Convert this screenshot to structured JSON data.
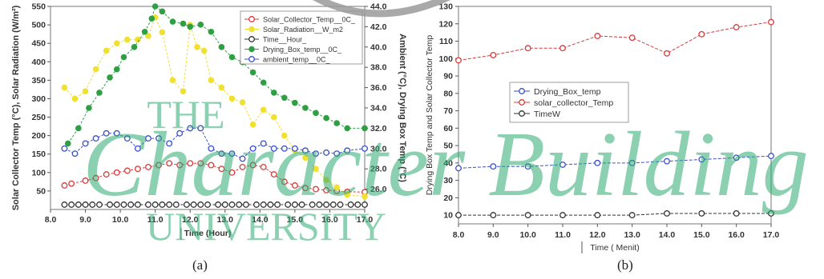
{
  "captions": [
    "(a)",
    "(b)"
  ],
  "watermark": {
    "top": "THE",
    "main": "Character Building",
    "bottom": "UNIVERSITY",
    "color": "#2eaa73"
  },
  "chart_data": [
    {
      "type": "scatter",
      "xlabel": "Time (Hour)",
      "ylabel_left": "Solar Collector Temp (°C), Solar Radiation (W/m²)",
      "ylabel_right": "Ambient (°C), Drying Box Temp (°C)",
      "xlim": [
        8.0,
        17.0
      ],
      "ylim_left": [
        0,
        550
      ],
      "ylim_right": [
        24.0,
        44.0
      ],
      "x_ticks": [
        "8.0",
        "9.0",
        "10.0",
        "11.0",
        "12.0",
        "13.0",
        "14.0",
        "15.0",
        "16.0",
        "17.0"
      ],
      "y_ticks_left": [
        "50",
        "100",
        "150",
        "200",
        "250",
        "300",
        "350",
        "400",
        "450",
        "500",
        "550"
      ],
      "y_ticks_right": [
        "26.0",
        "28.0",
        "30.0",
        "32.0",
        "34.0",
        "36.0",
        "38.0",
        "40.0",
        "42.0",
        "44.0"
      ],
      "legend_position": "top-right",
      "series": [
        {
          "name": "Solar_Collector_Temp__0C_",
          "axis": "left",
          "color": "#d93a3a",
          "marker": "circle-open",
          "line": true,
          "x": [
            8.4,
            8.6,
            9.0,
            9.3,
            9.6,
            9.9,
            10.2,
            10.5,
            10.8,
            11.1,
            11.4,
            11.7,
            12.0,
            12.3,
            12.6,
            12.9,
            13.2,
            13.5,
            13.8,
            14.1,
            14.4,
            14.7,
            15.0,
            15.3,
            15.6,
            15.9,
            16.2,
            16.5,
            17.0
          ],
          "y": [
            65,
            70,
            78,
            85,
            95,
            100,
            105,
            110,
            115,
            120,
            125,
            120,
            125,
            125,
            120,
            110,
            100,
            115,
            120,
            115,
            95,
            75,
            65,
            58,
            55,
            52,
            50,
            48,
            47
          ]
        },
        {
          "name": "Solar_Radiation__W_m2",
          "axis": "left",
          "color": "#f0e030",
          "marker": "circle-filled",
          "line": true,
          "x": [
            8.4,
            8.7,
            9.0,
            9.3,
            9.6,
            9.9,
            10.2,
            10.5,
            10.8,
            11.0,
            11.2,
            11.5,
            11.8,
            12.0,
            12.2,
            12.4,
            12.6,
            12.9,
            13.2,
            13.5,
            13.8,
            14.1,
            14.4,
            14.7,
            15.0,
            15.3,
            15.6,
            15.9,
            16.2,
            16.5,
            17.0
          ],
          "y": [
            330,
            300,
            320,
            380,
            430,
            450,
            460,
            460,
            470,
            520,
            480,
            350,
            320,
            500,
            440,
            430,
            350,
            330,
            300,
            290,
            230,
            270,
            250,
            200,
            160,
            140,
            110,
            80,
            60,
            40,
            35
          ]
        },
        {
          "name": "Time__Hour_",
          "axis": "left",
          "color": "#333333",
          "marker": "circle-open",
          "line": true,
          "x": [
            8.4,
            8.6,
            8.8,
            9.0,
            9.2,
            9.4,
            9.7,
            9.9,
            10.1,
            10.3,
            10.5,
            10.8,
            11.0,
            11.2,
            11.4,
            11.6,
            11.9,
            12.1,
            12.3,
            12.5,
            12.8,
            13.0,
            13.2,
            13.4,
            13.6,
            13.9,
            14.1,
            14.3,
            14.5,
            14.8,
            15.0,
            15.2,
            15.5,
            15.7,
            15.9,
            16.1,
            16.3,
            16.6,
            16.8,
            17.0
          ],
          "y": [
            13,
            13,
            13,
            13,
            13,
            13,
            13,
            13,
            13,
            13,
            13,
            13,
            13,
            13,
            13,
            13,
            13,
            13,
            13,
            13,
            13,
            13,
            13,
            13,
            13,
            13,
            13,
            13,
            13,
            13,
            13,
            13,
            13,
            13,
            13,
            13,
            13,
            13,
            13,
            13
          ]
        },
        {
          "name": "Drying_Box_temp__0C_",
          "axis": "right",
          "color": "#2ea043",
          "marker": "circle-filled",
          "line": true,
          "x": [
            8.5,
            8.8,
            9.1,
            9.4,
            9.7,
            9.9,
            10.1,
            10.4,
            10.7,
            10.9,
            11.0,
            11.2,
            11.5,
            11.8,
            12.0,
            12.3,
            12.6,
            12.9,
            13.2,
            13.5,
            13.8,
            14.1,
            14.4,
            14.7,
            15.0,
            15.3,
            15.6,
            15.9,
            16.2,
            16.5,
            17.0
          ],
          "y": [
            30.5,
            32.0,
            34.0,
            35.5,
            37.0,
            37.8,
            39.0,
            40.0,
            41.5,
            42.8,
            44.0,
            43.5,
            42.5,
            42.3,
            42.0,
            42.2,
            41.5,
            40.0,
            39.0,
            38.5,
            37.5,
            36.5,
            35.5,
            35.0,
            34.5,
            34.0,
            33.5,
            33.0,
            32.5,
            32.0,
            32.0
          ]
        },
        {
          "name": "ambient_temp__0C_",
          "axis": "right",
          "color": "#3a50c8",
          "marker": "circle-open",
          "line": true,
          "x": [
            8.4,
            8.7,
            9.0,
            9.3,
            9.6,
            9.9,
            10.2,
            10.5,
            10.8,
            11.1,
            11.4,
            11.7,
            12.0,
            12.3,
            12.6,
            12.9,
            13.2,
            13.5,
            13.8,
            14.1,
            14.4,
            14.7,
            15.0,
            15.3,
            15.6,
            15.9,
            16.2,
            16.5,
            17.0
          ],
          "y": [
            30.0,
            29.5,
            30.5,
            31.0,
            31.5,
            31.5,
            31.0,
            30.0,
            31.0,
            31.0,
            30.5,
            31.5,
            32.0,
            32.0,
            30.0,
            29.5,
            29.5,
            29.0,
            30.0,
            30.5,
            30.0,
            30.0,
            30.0,
            29.8,
            29.5,
            29.6,
            29.5,
            29.8,
            30.0
          ]
        }
      ]
    },
    {
      "type": "line",
      "xlabel": "Time ( Menit)",
      "ylabel": "Drying Box Temp and Solar Collector Temp",
      "xlim": [
        8.0,
        17.0
      ],
      "ylim": [
        5,
        130
      ],
      "x_ticks": [
        "8.0",
        "9.0",
        "10.0",
        "11.0",
        "12.0",
        "13.0",
        "14.0",
        "15.0",
        "16.0",
        "17.0"
      ],
      "y_ticks": [
        "10",
        "20",
        "30",
        "40",
        "50",
        "60",
        "70",
        "80",
        "90",
        "100",
        "110",
        "120",
        "130"
      ],
      "legend_position": "center-left",
      "x": [
        8,
        9,
        10,
        11,
        12,
        13,
        14,
        15,
        16,
        17
      ],
      "series": [
        {
          "name": "Drying_Box_temp",
          "color": "#3a50c8",
          "values": [
            37,
            38,
            38,
            39,
            40,
            40,
            41,
            42,
            43,
            44
          ]
        },
        {
          "name": "solar_collector_Temp",
          "color": "#d93a3a",
          "values": [
            99,
            102,
            106,
            106,
            113,
            112,
            103,
            114,
            118,
            121
          ]
        },
        {
          "name": "TimeW",
          "color": "#333333",
          "values": [
            10,
            10,
            10,
            10,
            10,
            10,
            11,
            11,
            11,
            11
          ]
        }
      ]
    }
  ]
}
